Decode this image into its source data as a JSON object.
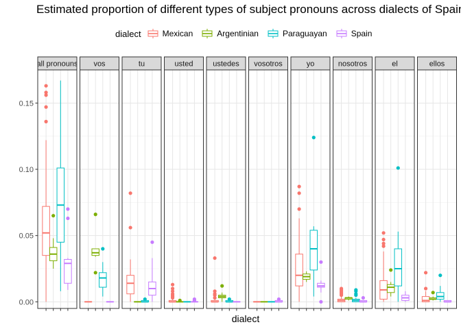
{
  "chart_data": {
    "type": "boxplot",
    "title": "Estimated proportion of different types of subject pronouns across dialects of Spain",
    "xlabel": "dialect",
    "ylabel": "",
    "ylim": [
      -0.005,
      0.175
    ],
    "y_ticks": [
      0.0,
      0.05,
      0.1,
      0.15
    ],
    "y_tick_labels": [
      "0.00",
      "0.05",
      "0.10",
      "0.15"
    ],
    "legend": {
      "title": "dialect",
      "position": "top",
      "items": [
        {
          "name": "Mexican",
          "color": "#F8766D"
        },
        {
          "name": "Argentinian",
          "color": "#7CAE00"
        },
        {
          "name": "Paraguayan",
          "color": "#00BFC4"
        },
        {
          "name": "Spain",
          "color": "#C77CFF"
        }
      ]
    },
    "facets": [
      {
        "label": "all pronouns",
        "boxes": [
          {
            "dialect": "Mexican",
            "min": 0.0,
            "q1": 0.035,
            "median": 0.052,
            "q3": 0.072,
            "max": 0.122,
            "outliers": [
              0.136,
              0.147,
              0.156,
              0.158,
              0.163
            ]
          },
          {
            "dialect": "Argentinian",
            "min": 0.025,
            "q1": 0.031,
            "median": 0.036,
            "q3": 0.041,
            "max": 0.048,
            "outliers": [
              0.065
            ]
          },
          {
            "dialect": "Paraguayan",
            "min": 0.008,
            "q1": 0.045,
            "median": 0.073,
            "q3": 0.101,
            "max": 0.167,
            "outliers": []
          },
          {
            "dialect": "Spain",
            "min": 0.009,
            "q1": 0.014,
            "median": 0.029,
            "q3": 0.032,
            "max": 0.033,
            "outliers": [
              0.063,
              0.07
            ]
          }
        ]
      },
      {
        "label": "vos",
        "boxes": [
          {
            "dialect": "Mexican",
            "min": 0.0,
            "q1": 0.0,
            "median": 0.0,
            "q3": 0.0,
            "max": 0.0,
            "outliers": []
          },
          {
            "dialect": "Argentinian",
            "min": 0.034,
            "q1": 0.035,
            "median": 0.037,
            "q3": 0.04,
            "max": 0.04,
            "outliers": [
              0.022,
              0.066
            ]
          },
          {
            "dialect": "Paraguayan",
            "min": 0.004,
            "q1": 0.011,
            "median": 0.018,
            "q3": 0.022,
            "max": 0.03,
            "outliers": [
              0.04
            ]
          },
          {
            "dialect": "Spain",
            "min": 0.0,
            "q1": 0.0,
            "median": 0.0,
            "q3": 0.0,
            "max": 0.0,
            "outliers": []
          }
        ]
      },
      {
        "label": "tu",
        "boxes": [
          {
            "dialect": "Mexican",
            "min": 0.0,
            "q1": 0.006,
            "median": 0.014,
            "q3": 0.02,
            "max": 0.032,
            "outliers": [
              0.056,
              0.082
            ]
          },
          {
            "dialect": "Argentinian",
            "min": 0.0,
            "q1": 0.0,
            "median": 0.0,
            "q3": 0.0,
            "max": 0.0,
            "outliers": []
          },
          {
            "dialect": "Paraguayan",
            "min": 0.0,
            "q1": 0.0,
            "median": 0.0,
            "q3": 0.001,
            "max": 0.002,
            "outliers": [
              0.002
            ]
          },
          {
            "dialect": "Spain",
            "min": 0.0,
            "q1": 0.005,
            "median": 0.01,
            "q3": 0.015,
            "max": 0.033,
            "outliers": [
              0.045
            ]
          }
        ]
      },
      {
        "label": "usted",
        "boxes": [
          {
            "dialect": "Mexican",
            "min": 0.0,
            "q1": 0.0,
            "median": 0.0,
            "q3": 0.001,
            "max": 0.002,
            "outliers": [
              0.003,
              0.004,
              0.005,
              0.006,
              0.008,
              0.01,
              0.013
            ]
          },
          {
            "dialect": "Argentinian",
            "min": 0.0,
            "q1": 0.0,
            "median": 0.0,
            "q3": 0.0,
            "max": 0.001,
            "outliers": [
              0.001
            ]
          },
          {
            "dialect": "Paraguayan",
            "min": 0.0,
            "q1": 0.0,
            "median": 0.0,
            "q3": 0.0,
            "max": 0.0,
            "outliers": []
          },
          {
            "dialect": "Spain",
            "min": 0.0,
            "q1": 0.0,
            "median": 0.0,
            "q3": 0.0,
            "max": 0.0,
            "outliers": [
              0.001,
              0.002
            ]
          }
        ]
      },
      {
        "label": "ustedes",
        "boxes": [
          {
            "dialect": "Mexican",
            "min": 0.0,
            "q1": 0.0,
            "median": 0.0,
            "q3": 0.001,
            "max": 0.002,
            "outliers": [
              0.003,
              0.005,
              0.006,
              0.008,
              0.033
            ]
          },
          {
            "dialect": "Argentinian",
            "min": 0.0,
            "q1": 0.003,
            "median": 0.004,
            "q3": 0.005,
            "max": 0.007,
            "outliers": [
              0.012
            ]
          },
          {
            "dialect": "Paraguayan",
            "min": 0.0,
            "q1": 0.0,
            "median": 0.0,
            "q3": 0.001,
            "max": 0.001,
            "outliers": [
              0.002
            ]
          },
          {
            "dialect": "Spain",
            "min": 0.0,
            "q1": 0.0,
            "median": 0.0,
            "q3": 0.0,
            "max": 0.0,
            "outliers": []
          }
        ]
      },
      {
        "label": "vosotros",
        "boxes": [
          {
            "dialect": "Mexican",
            "min": 0.0,
            "q1": 0.0,
            "median": 0.0,
            "q3": 0.0,
            "max": 0.0,
            "outliers": []
          },
          {
            "dialect": "Argentinian",
            "min": 0.0,
            "q1": 0.0,
            "median": 0.0,
            "q3": 0.0,
            "max": 0.0,
            "outliers": []
          },
          {
            "dialect": "Paraguayan",
            "min": 0.0,
            "q1": 0.0,
            "median": 0.0,
            "q3": 0.0,
            "max": 0.0,
            "outliers": []
          },
          {
            "dialect": "Spain",
            "min": 0.0,
            "q1": 0.0,
            "median": 0.0,
            "q3": 0.001,
            "max": 0.001,
            "outliers": [
              0.002
            ]
          }
        ]
      },
      {
        "label": "yo",
        "boxes": [
          {
            "dialect": "Mexican",
            "min": 0.0,
            "q1": 0.012,
            "median": 0.02,
            "q3": 0.036,
            "max": 0.063,
            "outliers": [
              0.07,
              0.082,
              0.087
            ]
          },
          {
            "dialect": "Argentinian",
            "min": 0.015,
            "q1": 0.017,
            "median": 0.019,
            "q3": 0.021,
            "max": 0.023,
            "outliers": []
          },
          {
            "dialect": "Paraguayan",
            "min": 0.004,
            "q1": 0.024,
            "median": 0.04,
            "q3": 0.054,
            "max": 0.057,
            "outliers": [
              0.124
            ]
          },
          {
            "dialect": "Spain",
            "min": 0.007,
            "q1": 0.011,
            "median": 0.012,
            "q3": 0.014,
            "max": 0.016,
            "outliers": [
              0.0,
              0.03
            ]
          }
        ]
      },
      {
        "label": "nosotros",
        "boxes": [
          {
            "dialect": "Mexican",
            "min": 0.0,
            "q1": 0.0,
            "median": 0.001,
            "q3": 0.002,
            "max": 0.004,
            "outliers": [
              0.005,
              0.006,
              0.007,
              0.008,
              0.009,
              0.01
            ]
          },
          {
            "dialect": "Argentinian",
            "min": 0.001,
            "q1": 0.002,
            "median": 0.003,
            "q3": 0.003,
            "max": 0.004,
            "outliers": []
          },
          {
            "dialect": "Paraguayan",
            "min": 0.0,
            "q1": 0.0,
            "median": 0.001,
            "q3": 0.002,
            "max": 0.003,
            "outliers": [
              0.005,
              0.006,
              0.008,
              0.009
            ]
          },
          {
            "dialect": "Spain",
            "min": 0.0,
            "q1": 0.0,
            "median": 0.0,
            "q3": 0.001,
            "max": 0.001,
            "outliers": [
              0.003
            ]
          }
        ]
      },
      {
        "label": "el",
        "boxes": [
          {
            "dialect": "Mexican",
            "min": 0.0,
            "q1": 0.002,
            "median": 0.009,
            "q3": 0.016,
            "max": 0.038,
            "outliers": [
              0.042,
              0.044,
              0.047,
              0.052
            ]
          },
          {
            "dialect": "Argentinian",
            "min": 0.004,
            "q1": 0.007,
            "median": 0.011,
            "q3": 0.013,
            "max": 0.015,
            "outliers": [
              0.024
            ]
          },
          {
            "dialect": "Paraguayan",
            "min": 0.0,
            "q1": 0.012,
            "median": 0.025,
            "q3": 0.04,
            "max": 0.053,
            "outliers": [
              0.101
            ]
          },
          {
            "dialect": "Spain",
            "min": 0.0,
            "q1": 0.001,
            "median": 0.003,
            "q3": 0.005,
            "max": 0.008,
            "outliers": []
          }
        ]
      },
      {
        "label": "ellos",
        "boxes": [
          {
            "dialect": "Mexican",
            "min": 0.0,
            "q1": 0.0,
            "median": 0.001,
            "q3": 0.004,
            "max": 0.008,
            "outliers": [
              0.01,
              0.022
            ]
          },
          {
            "dialect": "Argentinian",
            "min": 0.001,
            "q1": 0.002,
            "median": 0.002,
            "q3": 0.003,
            "max": 0.004,
            "outliers": [
              0.007
            ]
          },
          {
            "dialect": "Paraguayan",
            "min": 0.0,
            "q1": 0.002,
            "median": 0.004,
            "q3": 0.007,
            "max": 0.012,
            "outliers": [
              0.02
            ]
          },
          {
            "dialect": "Spain",
            "min": 0.0,
            "q1": 0.0,
            "median": 0.0,
            "q3": 0.001,
            "max": 0.001,
            "outliers": []
          }
        ]
      }
    ]
  }
}
